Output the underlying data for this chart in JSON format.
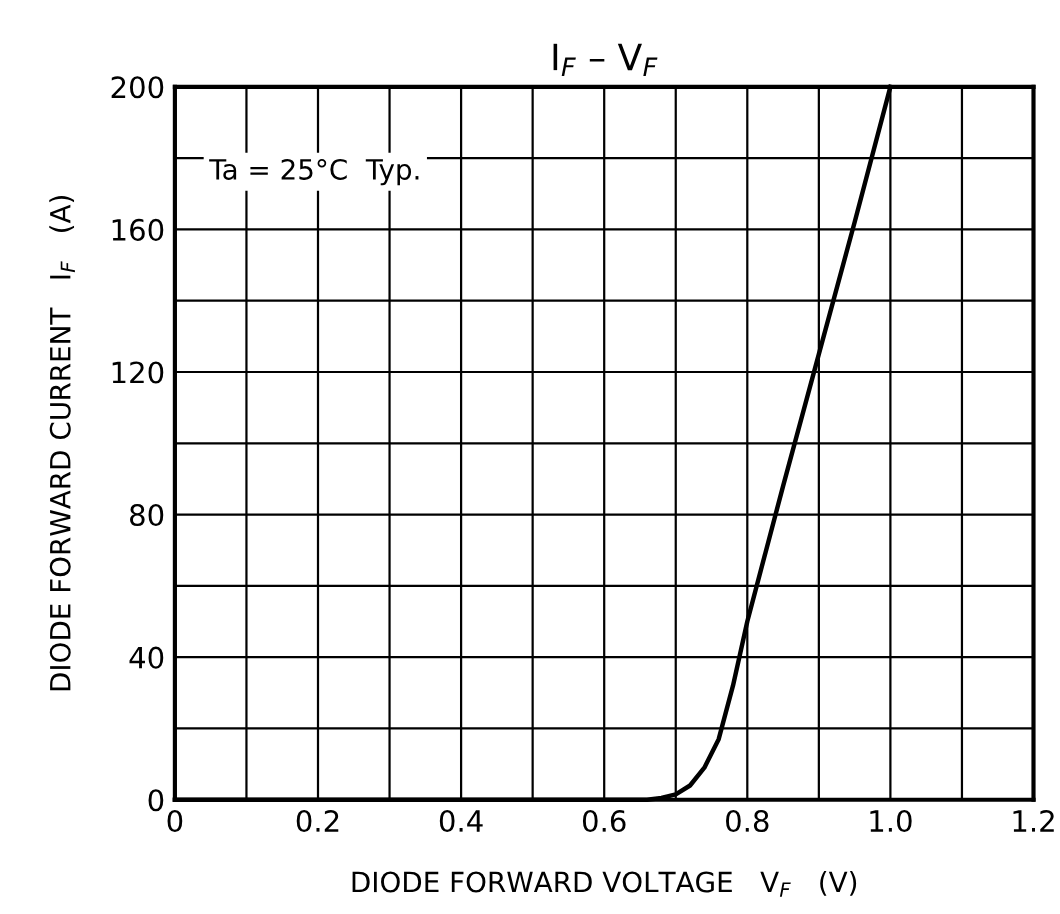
{
  "chart_data": {
    "type": "line",
    "title": "I$_{F}$ – V$_{F}$",
    "xlabel": "DIODE FORWARD VOLTAGE   V$_{F}$   (V)",
    "ylabel": "DIODE FORWARD CURRENT   I$_{F}$   (A)",
    "annotations": [
      "Ta = 25°C  Typ."
    ],
    "series": [
      {
        "color": "#000000",
        "x": [
          0,
          0.6,
          0.66,
          0.68,
          0.7,
          0.72,
          0.74,
          0.76,
          0.78,
          0.8,
          0.85,
          0.9,
          0.95,
          1.0
        ],
        "values": [
          0,
          0,
          0,
          0.5,
          1.5,
          4,
          9,
          17,
          32,
          50,
          88,
          125,
          162,
          200
        ]
      }
    ],
    "xlim": [
      0,
      1.2
    ],
    "ylim": [
      0,
      200
    ],
    "xticks": [
      0,
      {
        "value": 0.1,
        "label": null
      },
      0.2,
      {
        "value": 0.3,
        "label": null
      },
      0.4,
      {
        "value": 0.5,
        "label": null
      },
      0.6,
      {
        "value": 0.7,
        "label": null
      },
      0.8,
      {
        "value": 0.9,
        "label": null
      },
      {
        "value": 1.0,
        "label": "1.0"
      },
      {
        "value": 1.1,
        "label": null
      },
      {
        "value": 1.2,
        "label": "1.2"
      }
    ],
    "yticks": [
      0,
      {
        "value": 20,
        "label": null
      },
      40,
      {
        "value": 60,
        "label": null
      },
      80,
      {
        "value": 100,
        "label": null
      },
      120,
      {
        "value": 140,
        "label": null
      },
      160,
      {
        "value": 180,
        "label": null
      },
      200
    ],
    "grid": true,
    "marker": "none",
    "line_style": "solid"
  }
}
